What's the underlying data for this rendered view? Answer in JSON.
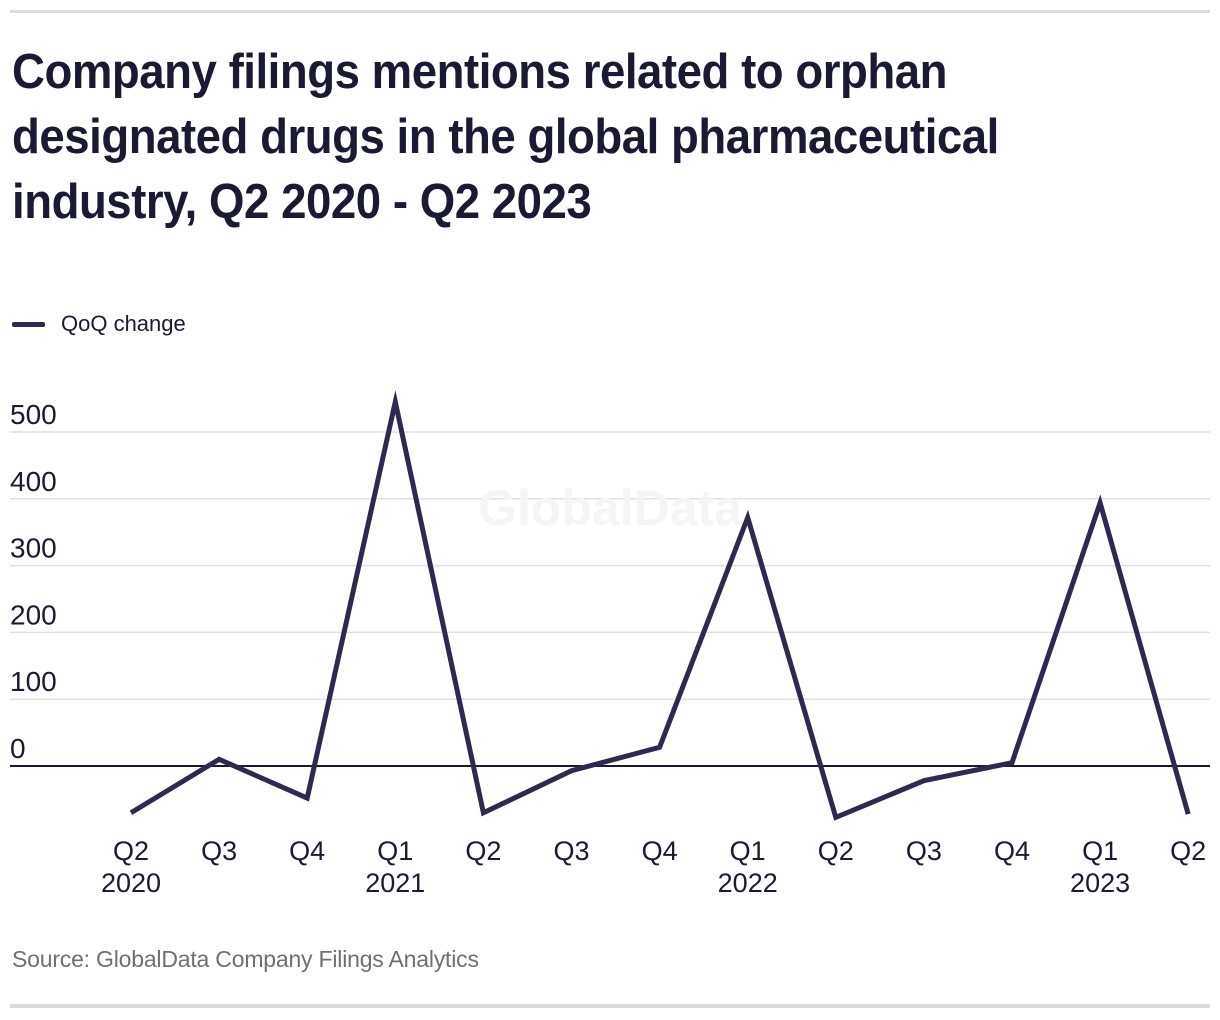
{
  "header": {
    "title_lines": [
      "Company filings mentions related to orphan",
      "designated drugs in the global pharmaceutical",
      "industry, Q2 2020 - Q2 2023"
    ]
  },
  "legend": {
    "label": "QoQ change"
  },
  "watermark": "GlobalData",
  "source": {
    "text": "Source: GlobalData Company Filings Analytics"
  },
  "colors": {
    "line": "#2c2a4e",
    "grid": "#e0e0e0",
    "zero_line": "#18182f",
    "text": "#1a1a32",
    "watermark": "#f5f5f5",
    "source_text": "#707070",
    "rule": "#dcdcdc"
  },
  "chart_data": {
    "type": "line",
    "title": "Company filings mentions related to orphan designated drugs in the global pharmaceutical industry, Q2 2020 - Q2 2023",
    "categories": [
      "Q2 2020",
      "Q3 2020",
      "Q4 2020",
      "Q1 2021",
      "Q2 2021",
      "Q3 2021",
      "Q4 2021",
      "Q1 2022",
      "Q2 2022",
      "Q3 2022",
      "Q4 2022",
      "Q1 2023",
      "Q2 2023"
    ],
    "series": [
      {
        "name": "QoQ change",
        "values": [
          -70,
          10,
          -48,
          545,
          -70,
          -7,
          28,
          372,
          -77,
          -22,
          5,
          394,
          -72
        ]
      }
    ],
    "x_tick_labels": [
      "Q2",
      "Q3",
      "Q4",
      "Q1",
      "Q2",
      "Q3",
      "Q4",
      "Q1",
      "Q2",
      "Q3",
      "Q4",
      "Q1",
      "Q2"
    ],
    "x_year_labels": [
      {
        "index": 0,
        "label": "2020"
      },
      {
        "index": 3,
        "label": "2021"
      },
      {
        "index": 7,
        "label": "2022"
      },
      {
        "index": 11,
        "label": "2023"
      }
    ],
    "y_ticks": [
      0,
      100,
      200,
      300,
      400,
      500
    ],
    "ylim": [
      -100,
      560
    ],
    "grid": "horizontal",
    "legend_position": "top-left"
  }
}
